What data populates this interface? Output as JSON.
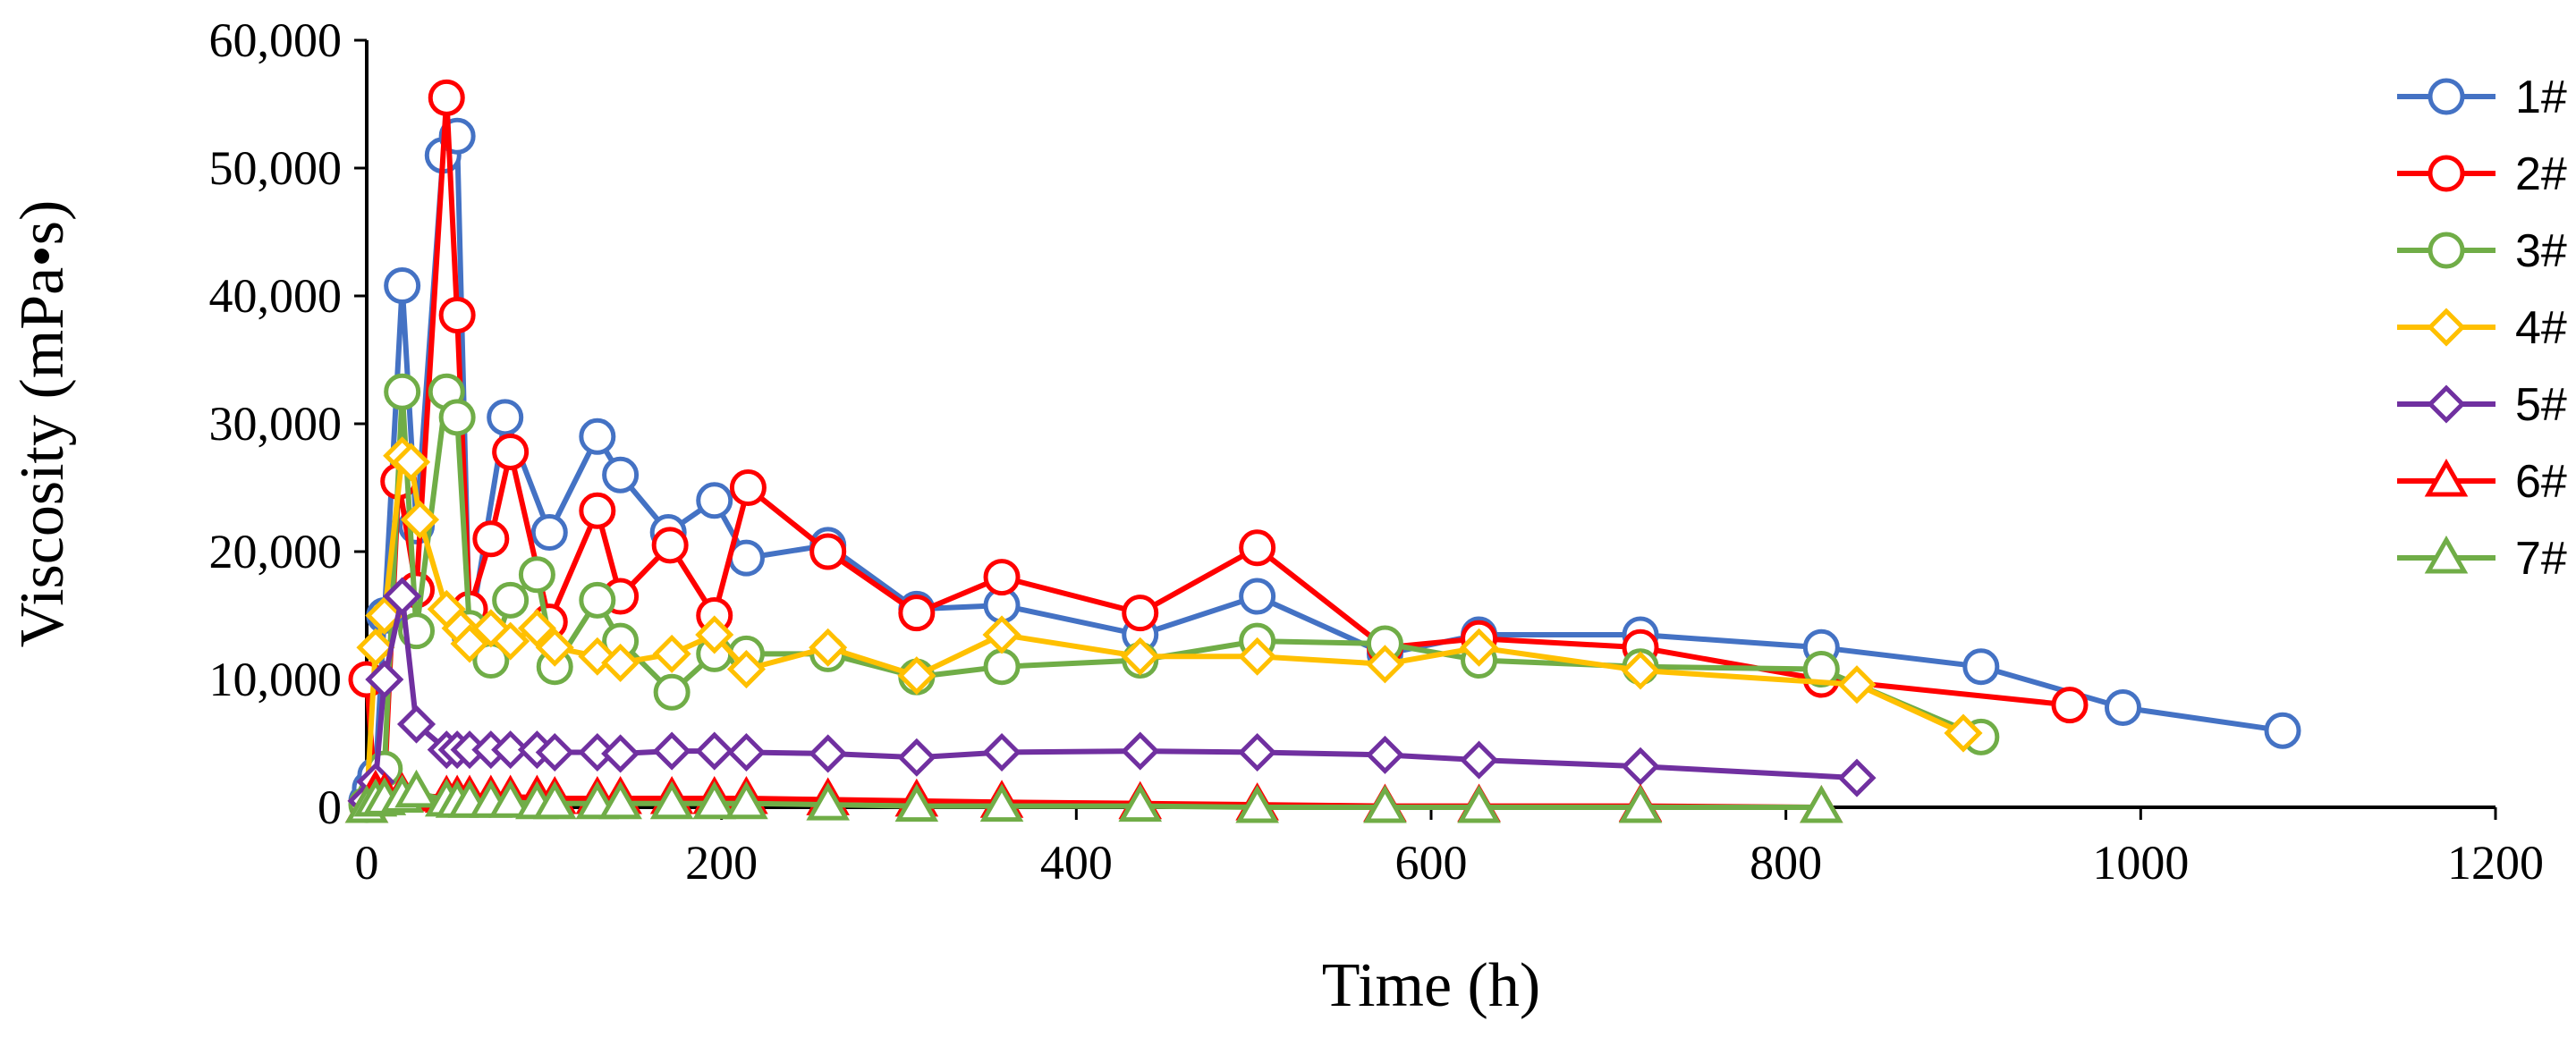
{
  "chart_data": {
    "type": "line",
    "title": "",
    "xlabel": "Time (h)",
    "ylabel": "Viscosity (mPa•s)",
    "xlim": [
      0,
      1200
    ],
    "ylim": [
      0,
      60000
    ],
    "xticks": [
      "0",
      "200",
      "400",
      "600",
      "800",
      "1000",
      "1200"
    ],
    "yticks": [
      "0",
      "10,000",
      "20,000",
      "30,000",
      "40,000",
      "50,000",
      "60,000"
    ],
    "grid": false,
    "legend_position": "right",
    "series": [
      {
        "name": "1#",
        "color": "#4472C4",
        "marker": "circle",
        "x": [
          0,
          2,
          5,
          10,
          20,
          28,
          43,
          51,
          58,
          78,
          103,
          130,
          143,
          170,
          196,
          214,
          260,
          310,
          358,
          436,
          502,
          574,
          627,
          718,
          820,
          910,
          990,
          1080
        ],
        "y": [
          500,
          1500,
          2500,
          15000,
          40800,
          22000,
          51000,
          52500,
          13500,
          30500,
          21500,
          29000,
          26000,
          21500,
          24000,
          19500,
          20500,
          15500,
          15800,
          13500,
          16500,
          12000,
          13500,
          13500,
          12500,
          11000,
          7800,
          6000
        ]
      },
      {
        "name": "2#",
        "color": "#FF0000",
        "marker": "circle",
        "x": [
          0,
          5,
          10,
          18,
          28,
          45,
          51,
          58,
          70,
          81,
          103,
          130,
          143,
          171,
          196,
          215,
          260,
          310,
          358,
          436,
          502,
          574,
          627,
          718,
          820,
          960
        ],
        "y": [
          10000,
          500,
          1500,
          25500,
          17000,
          55500,
          38500,
          15500,
          21000,
          27800,
          14500,
          23200,
          16500,
          20500,
          15000,
          25000,
          20000,
          15200,
          18000,
          15200,
          20300,
          12500,
          13200,
          12500,
          10000,
          8000
        ]
      },
      {
        "name": "3#",
        "color": "#70AD47",
        "marker": "circle",
        "x": [
          0,
          5,
          10,
          20,
          28,
          45,
          51,
          58,
          70,
          81,
          96,
          106,
          130,
          143,
          172,
          196,
          214,
          260,
          310,
          358,
          436,
          502,
          574,
          627,
          718,
          820,
          910
        ],
        "y": [
          200,
          1000,
          3000,
          32500,
          13800,
          32500,
          30500,
          14000,
          11500,
          16200,
          18200,
          11000,
          16200,
          13000,
          9000,
          12000,
          12000,
          12000,
          10200,
          11000,
          11500,
          13000,
          12800,
          11500,
          11000,
          10800,
          5500
        ]
      },
      {
        "name": "4#",
        "color": "#FFC000",
        "marker": "diamond",
        "x": [
          0,
          5,
          10,
          20,
          25,
          30,
          45,
          53,
          58,
          70,
          81,
          96,
          106,
          130,
          143,
          172,
          196,
          214,
          260,
          310,
          358,
          436,
          502,
          574,
          627,
          718,
          840,
          900
        ],
        "y": [
          500,
          12500,
          15000,
          27500,
          27000,
          22500,
          15500,
          14000,
          12800,
          14000,
          13000,
          14000,
          12500,
          11800,
          11300,
          12000,
          13500,
          10800,
          12500,
          10300,
          13500,
          11800,
          11800,
          11200,
          12500,
          10700,
          9600,
          5800
        ]
      },
      {
        "name": "5#",
        "color": "#7030A0",
        "marker": "diamond",
        "x": [
          0,
          5,
          10,
          20,
          28,
          45,
          51,
          58,
          70,
          81,
          96,
          106,
          130,
          143,
          172,
          196,
          214,
          260,
          310,
          358,
          436,
          502,
          574,
          627,
          718,
          840
        ],
        "y": [
          500,
          2000,
          10000,
          16500,
          6500,
          4500,
          4500,
          4500,
          4500,
          4500,
          4500,
          4300,
          4300,
          4200,
          4400,
          4400,
          4300,
          4200,
          3900,
          4300,
          4400,
          4300,
          4100,
          3700,
          3200,
          2300
        ]
      },
      {
        "name": "6#",
        "color": "#FF0000",
        "marker": "triangle",
        "x": [
          0,
          5,
          10,
          20,
          28,
          45,
          51,
          58,
          70,
          81,
          96,
          106,
          130,
          143,
          172,
          196,
          214,
          260,
          310,
          358,
          436,
          502,
          574,
          627,
          718,
          820
        ],
        "y": [
          0,
          1200,
          1000,
          1000,
          900,
          800,
          800,
          800,
          800,
          800,
          800,
          700,
          700,
          700,
          700,
          700,
          700,
          600,
          500,
          400,
          300,
          200,
          100,
          100,
          100,
          0
        ]
      },
      {
        "name": "7#",
        "color": "#70AD47",
        "marker": "triangle",
        "x": [
          0,
          5,
          10,
          20,
          28,
          45,
          51,
          58,
          70,
          81,
          96,
          106,
          130,
          143,
          172,
          196,
          214,
          260,
          310,
          358,
          436,
          502,
          574,
          627,
          718,
          820
        ],
        "y": [
          0,
          500,
          600,
          800,
          1200,
          500,
          400,
          400,
          400,
          400,
          300,
          300,
          300,
          300,
          300,
          300,
          300,
          200,
          100,
          100,
          100,
          0,
          0,
          0,
          0,
          0
        ]
      }
    ]
  }
}
